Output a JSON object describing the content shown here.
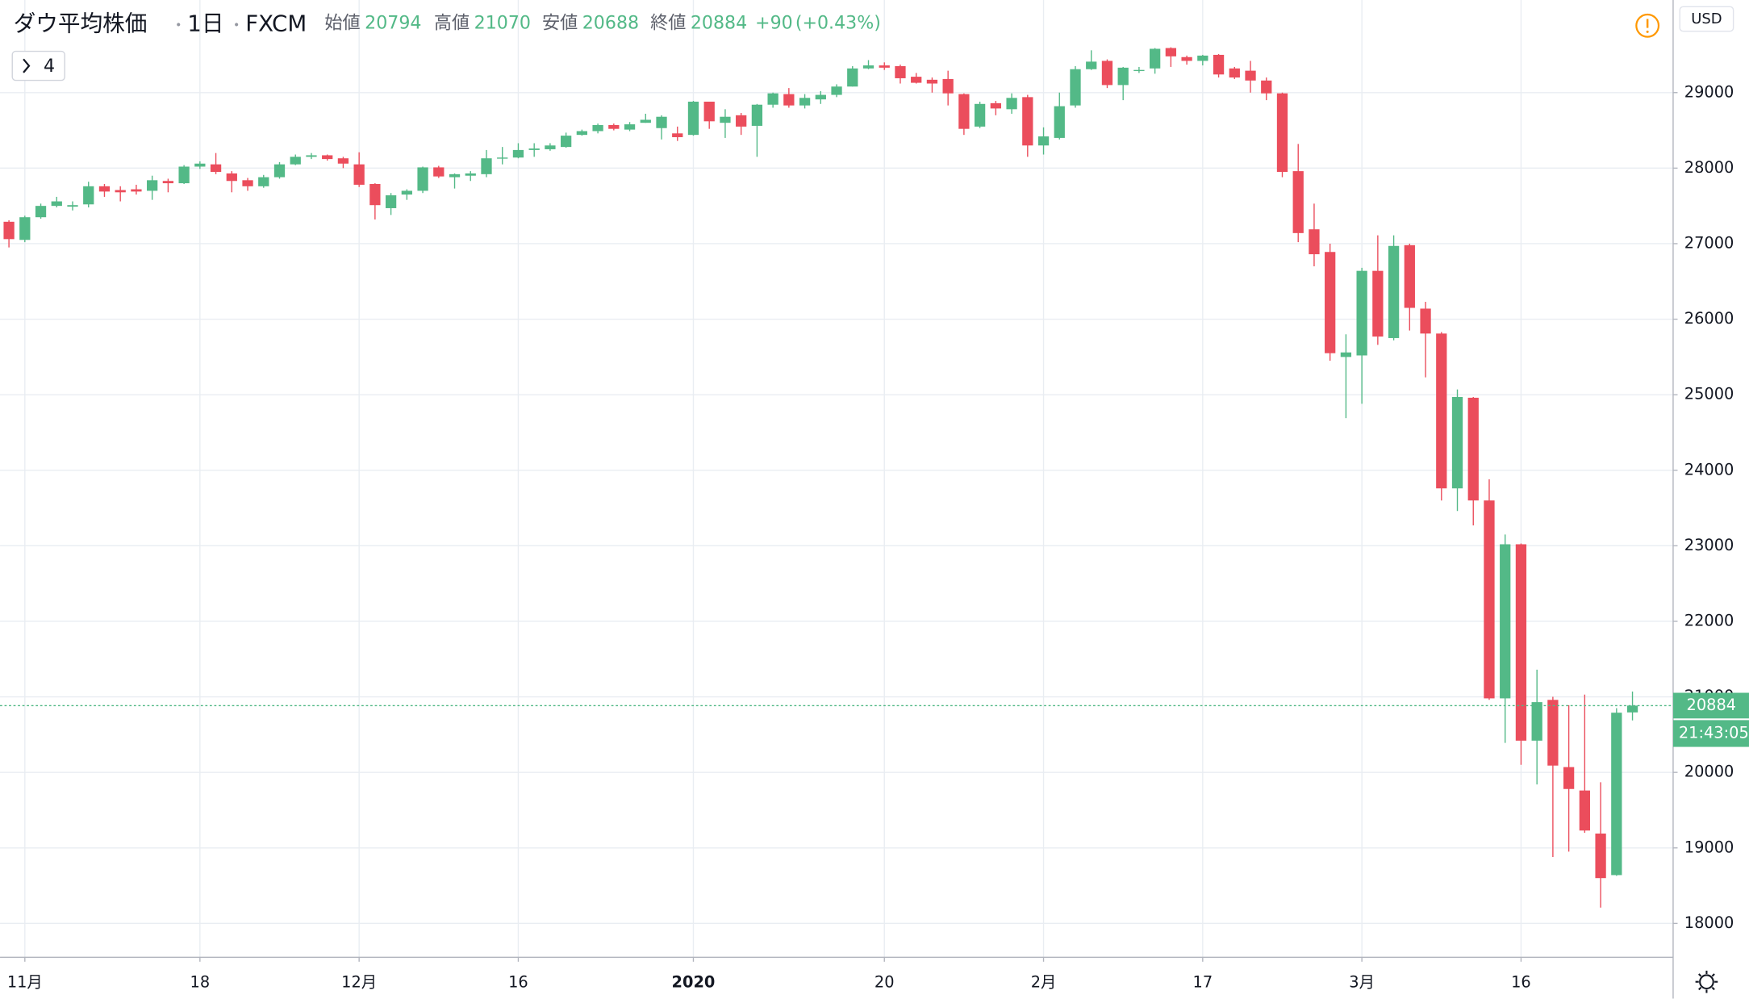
{
  "chart_data": {
    "type": "candlestick",
    "title": "ダウ平均株価",
    "interval": "1日",
    "source": "FXCM",
    "open_label": "始値",
    "high_label": "高値",
    "low_label": "安値",
    "close_label": "終値",
    "change": {
      "value": 90,
      "label": "+90"
    },
    "change_pct": {
      "value": 0.43,
      "label": "(+0.43%)"
    },
    "indicator_count": 4,
    "currency": "USD",
    "countdown": "21:43:05",
    "up_color": "#53b987",
    "down_color": "#eb4d5c",
    "grid": true,
    "ylim": [
      17552,
      30226
    ],
    "yticks": [
      18000,
      19000,
      20000,
      21000,
      22000,
      23000,
      24000,
      25000,
      26000,
      27000,
      28000,
      29000
    ],
    "categories": [
      null,
      "11月",
      null,
      null,
      null,
      null,
      null,
      null,
      null,
      null,
      null,
      null,
      "18",
      null,
      null,
      null,
      null,
      null,
      null,
      null,
      null,
      null,
      "12月",
      null,
      null,
      null,
      null,
      null,
      null,
      null,
      null,
      null,
      "16",
      null,
      null,
      null,
      null,
      null,
      null,
      null,
      null,
      null,
      null,
      "2020",
      null,
      null,
      null,
      null,
      null,
      null,
      null,
      null,
      null,
      null,
      null,
      "20",
      null,
      null,
      null,
      null,
      null,
      null,
      null,
      null,
      null,
      "2月",
      null,
      null,
      null,
      null,
      null,
      null,
      null,
      null,
      null,
      "17",
      null,
      null,
      null,
      null,
      null,
      null,
      null,
      null,
      null,
      "3月",
      null,
      null,
      null,
      null,
      null,
      null,
      null,
      null,
      null,
      "16",
      null,
      null,
      null,
      null,
      null,
      null,
      null
    ],
    "open": [
      27290,
      27050,
      27350,
      27500,
      27490,
      27520,
      27760,
      27710,
      27720,
      27700,
      27830,
      27800,
      28020,
      28050,
      27930,
      27840,
      27760,
      27880,
      28050,
      28150,
      28170,
      28130,
      28050,
      27790,
      27470,
      27650,
      27700,
      28010,
      27880,
      27900,
      27920,
      28130,
      28140,
      28240,
      28250,
      28280,
      28440,
      28490,
      28570,
      28510,
      28600,
      28530,
      28460,
      28440,
      28880,
      28600,
      28700,
      28560,
      28840,
      28980,
      28830,
      28910,
      28970,
      29080,
      29320,
      29360,
      29350,
      29210,
      29170,
      29180,
      28980,
      28550,
      28860,
      28780,
      28940,
      28300,
      28400,
      28830,
      29310,
      29420,
      29100,
      29290,
      29320,
      29590,
      29470,
      29420,
      29500,
      29320,
      29290,
      29160,
      28990,
      27960,
      27190,
      26890,
      25500,
      25520,
      26640,
      25750,
      26980,
      26140,
      25810,
      23760,
      24960,
      23600,
      20980,
      23020,
      20420,
      20960,
      20070,
      19760,
      19190,
      18640,
      20794
    ],
    "high": [
      27310,
      27370,
      27530,
      27620,
      27560,
      27820,
      27790,
      27760,
      27780,
      27900,
      27860,
      28040,
      28090,
      28200,
      27960,
      27870,
      27910,
      28080,
      28180,
      28200,
      28180,
      28150,
      28210,
      27800,
      27670,
      27720,
      28020,
      28030,
      27930,
      27960,
      28240,
      28280,
      28330,
      28330,
      28330,
      28470,
      28510,
      28590,
      28590,
      28610,
      28720,
      28700,
      28550,
      28890,
      28880,
      28780,
      28730,
      28850,
      29000,
      29060,
      28980,
      29020,
      29110,
      29350,
      29430,
      29400,
      29370,
      29260,
      29200,
      29290,
      28990,
      28880,
      28890,
      28990,
      28970,
      28540,
      29000,
      29350,
      29560,
      29440,
      29340,
      29340,
      29590,
      29600,
      29490,
      29500,
      29510,
      29340,
      29420,
      29200,
      29000,
      28320,
      27530,
      27000,
      25800,
      26680,
      27110,
      27110,
      27000,
      26230,
      25830,
      25070,
      24970,
      23880,
      23150,
      23030,
      21360,
      21000,
      20890,
      21030,
      19870,
      20850,
      21070
    ],
    "low": [
      26950,
      27020,
      27330,
      27480,
      27440,
      27480,
      27620,
      27560,
      27650,
      27580,
      27680,
      27790,
      27990,
      27920,
      27680,
      27700,
      27740,
      27860,
      28040,
      28120,
      28100,
      28000,
      27750,
      27320,
      27380,
      27580,
      27670,
      27870,
      27730,
      27830,
      27880,
      28050,
      28130,
      28150,
      28230,
      28270,
      28430,
      28460,
      28500,
      28490,
      28600,
      28380,
      28360,
      28430,
      28520,
      28400,
      28440,
      28150,
      28800,
      28800,
      28790,
      28850,
      28940,
      29080,
      29310,
      29300,
      29120,
      29120,
      29000,
      28830,
      28440,
      28530,
      28700,
      28720,
      28150,
      28180,
      28380,
      28800,
      29300,
      29060,
      28900,
      29260,
      29250,
      29340,
      29370,
      29360,
      29200,
      29180,
      29000,
      28900,
      27880,
      27020,
      26700,
      25450,
      24690,
      24880,
      25660,
      25720,
      25850,
      25230,
      23600,
      23460,
      23270,
      20960,
      20390,
      20100,
      19840,
      18880,
      18950,
      19200,
      18210,
      18630,
      20688
    ],
    "close": [
      27060,
      27350,
      27500,
      27560,
      27510,
      27760,
      27690,
      27680,
      27690,
      27840,
      27800,
      28020,
      28060,
      27950,
      27830,
      27760,
      27880,
      28050,
      28150,
      28170,
      28120,
      28060,
      27780,
      27510,
      27640,
      27700,
      28010,
      27890,
      27920,
      27930,
      28130,
      28140,
      28240,
      28260,
      28300,
      28430,
      28490,
      28570,
      28520,
      28580,
      28640,
      28680,
      28410,
      28880,
      28620,
      28680,
      28550,
      28840,
      28990,
      28830,
      28930,
      28970,
      29080,
      29320,
      29360,
      29330,
      29190,
      29130,
      29120,
      28990,
      28520,
      28850,
      28790,
      28930,
      28300,
      28420,
      28820,
      29310,
      29410,
      29100,
      29330,
      29300,
      29580,
      29480,
      29420,
      29490,
      29240,
      29200,
      29160,
      28990,
      27950,
      27140,
      26860,
      25550,
      25560,
      26640,
      25770,
      26970,
      26150,
      25810,
      23760,
      24970,
      23600,
      20980,
      23020,
      20420,
      20930,
      20090,
      19780,
      19230,
      18600,
      20790,
      20884
    ]
  }
}
